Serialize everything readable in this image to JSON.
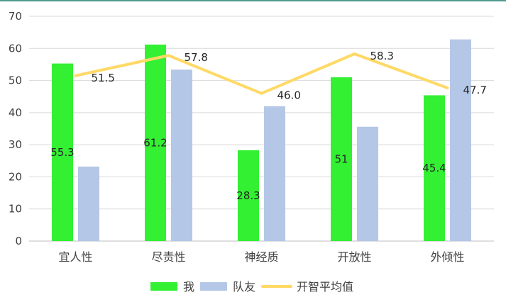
{
  "chart_data": {
    "type": "bar",
    "categories": [
      "宜人性",
      "尽责性",
      "神经质",
      "开放性",
      "外倾性"
    ],
    "series": [
      {
        "name": "我",
        "type": "bar",
        "values": [
          55.3,
          61.2,
          28.3,
          51,
          45.4
        ],
        "labels": [
          "55.3",
          "61.2",
          "28.3",
          "51",
          "45.4"
        ],
        "color": "#33f033"
      },
      {
        "name": "队友",
        "type": "bar",
        "values": [
          23.2,
          53.4,
          42.0,
          35.6,
          62.8
        ],
        "color": "#b4c7e7"
      },
      {
        "name": "开智平均值",
        "type": "line",
        "values": [
          51.5,
          57.8,
          46.0,
          58.3,
          47.7
        ],
        "labels": [
          "51.5",
          "57.8",
          "46.0",
          "58.3",
          "47.7"
        ],
        "color": "#ffd966"
      }
    ],
    "yticks": [
      "0",
      "10",
      "20",
      "30",
      "40",
      "50",
      "60",
      "70"
    ],
    "ylim": [
      0,
      70
    ],
    "grid": true,
    "legend": "bottom"
  }
}
